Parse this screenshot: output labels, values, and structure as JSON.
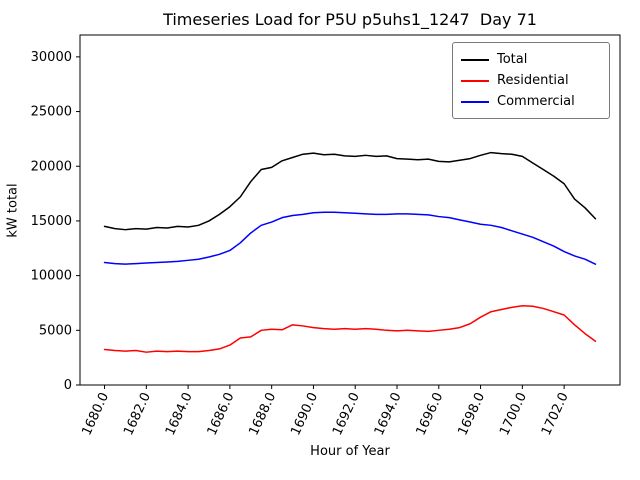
{
  "figure": {
    "background": "#ffffff"
  },
  "chart_data": {
    "type": "line",
    "title": "Timeseries Load for P5U p5uhs1_1247  Day 71",
    "xlabel": "Hour of Year",
    "ylabel": "kW total",
    "xlim": [
      1678.825,
      1704.675
    ],
    "ylim": [
      0,
      32000
    ],
    "grid": false,
    "legend_position": "upper right",
    "x_ticks": [
      1680,
      1682,
      1684,
      1686,
      1688,
      1690,
      1692,
      1694,
      1696,
      1698,
      1700,
      1702
    ],
    "x_tick_labels": [
      "1680.0",
      "1682.0",
      "1684.0",
      "1686.0",
      "1688.0",
      "1690.0",
      "1692.0",
      "1694.0",
      "1696.0",
      "1698.0",
      "1700.0",
      "1702.0"
    ],
    "y_ticks": [
      0,
      5000,
      10000,
      15000,
      20000,
      25000,
      30000
    ],
    "y_tick_labels": [
      "0",
      "5000",
      "10000",
      "15000",
      "20000",
      "25000",
      "30000"
    ],
    "x": [
      1680,
      1680.5,
      1681,
      1681.5,
      1682,
      1682.5,
      1683,
      1683.5,
      1684,
      1684.5,
      1685,
      1685.5,
      1686,
      1686.5,
      1687,
      1687.5,
      1688,
      1688.5,
      1689,
      1689.5,
      1690,
      1690.5,
      1691,
      1691.5,
      1692,
      1692.5,
      1693,
      1693.5,
      1694,
      1694.5,
      1695,
      1695.5,
      1696,
      1696.5,
      1697,
      1697.5,
      1698,
      1698.5,
      1699,
      1699.5,
      1700,
      1700.5,
      1701,
      1701.5,
      1702,
      1702.5,
      1703,
      1703.5
    ],
    "series": [
      {
        "name": "Total",
        "color": "#000000",
        "values": [
          14500,
          14300,
          14200,
          14300,
          14250,
          14400,
          14350,
          14500,
          14450,
          14600,
          15000,
          15600,
          16300,
          17200,
          18600,
          19700,
          19900,
          20500,
          20800,
          21100,
          21200,
          21050,
          21100,
          20950,
          20900,
          21000,
          20900,
          20950,
          20700,
          20650,
          20600,
          20650,
          20450,
          20400,
          20550,
          20700,
          21000,
          21250,
          21150,
          21100,
          20900,
          20300,
          19700,
          19100,
          18400,
          17000,
          16200,
          15200
        ]
      },
      {
        "name": "Residential",
        "color": "#ff0000",
        "values": [
          3250,
          3150,
          3100,
          3150,
          3000,
          3100,
          3050,
          3100,
          3050,
          3050,
          3150,
          3300,
          3650,
          4300,
          4400,
          5000,
          5100,
          5050,
          5500,
          5400,
          5250,
          5150,
          5100,
          5150,
          5100,
          5150,
          5100,
          5000,
          4950,
          5000,
          4950,
          4900,
          5000,
          5100,
          5250,
          5600,
          6200,
          6700,
          6900,
          7100,
          7250,
          7200,
          7000,
          6700,
          6400,
          5500,
          4700,
          4000
        ]
      },
      {
        "name": "Commercial",
        "color": "#0000ff",
        "values": [
          11200,
          11100,
          11050,
          11100,
          11150,
          11200,
          11250,
          11300,
          11400,
          11500,
          11700,
          11950,
          12300,
          13000,
          13900,
          14600,
          14900,
          15300,
          15500,
          15600,
          15750,
          15800,
          15800,
          15750,
          15700,
          15650,
          15600,
          15600,
          15650,
          15650,
          15600,
          15550,
          15400,
          15300,
          15100,
          14900,
          14700,
          14600,
          14400,
          14100,
          13800,
          13500,
          13100,
          12700,
          12200,
          11800,
          11500,
          11050
        ]
      }
    ]
  }
}
